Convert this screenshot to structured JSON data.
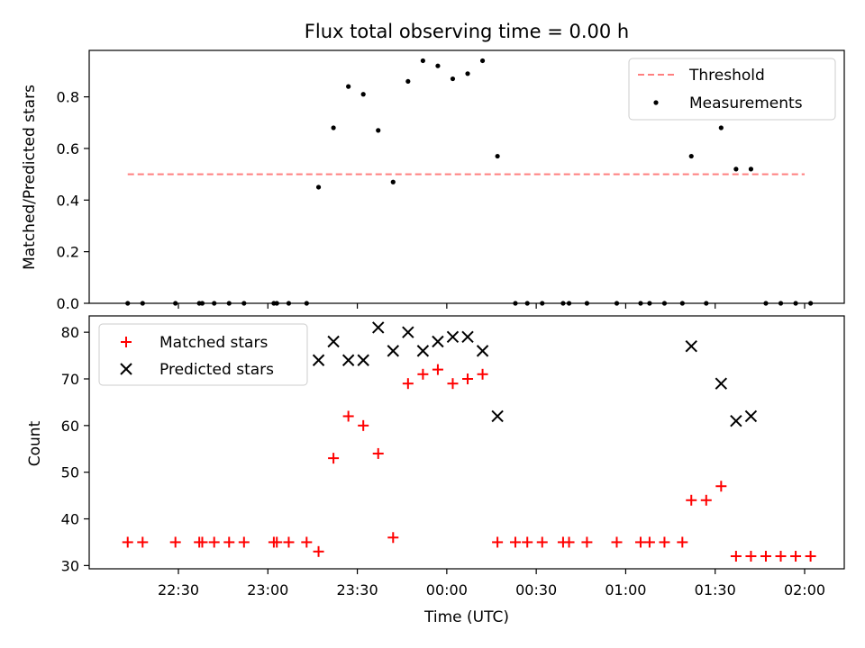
{
  "chart_data": [
    {
      "type": "scatter",
      "title": "Flux total observing time = 0.00 h",
      "xlabel": "",
      "ylabel": "Matched/Predicted stars",
      "ylim": [
        0.0,
        0.98
      ],
      "yticks": [
        "0.0",
        "0.2",
        "0.4",
        "0.6",
        "0.8"
      ],
      "legend": {
        "position": "upper right",
        "entries": [
          "Threshold",
          "Measurements"
        ]
      },
      "threshold": {
        "name": "Threshold",
        "value": 0.5,
        "x_start": "22:13",
        "x_end": "02:00",
        "color": "#ff7f7f"
      },
      "series": [
        {
          "name": "Measurements",
          "color": "#000000",
          "x": [
            "22:13",
            "22:18",
            "22:29",
            "22:37",
            "22:38",
            "22:42",
            "22:47",
            "22:52",
            "23:02",
            "23:03",
            "23:07",
            "23:13",
            "23:17",
            "23:22",
            "23:27",
            "23:32",
            "23:37",
            "23:42",
            "23:47",
            "23:52",
            "23:57",
            "00:02",
            "00:07",
            "00:12",
            "00:17",
            "00:23",
            "00:27",
            "00:32",
            "00:39",
            "00:41",
            "00:47",
            "00:57",
            "01:05",
            "01:08",
            "01:13",
            "01:19",
            "01:22",
            "01:27",
            "01:32",
            "01:37",
            "01:42",
            "01:47",
            "01:52",
            "01:57",
            "02:02"
          ],
          "y": [
            0.0,
            0.0,
            0.0,
            0.0,
            0.0,
            0.0,
            0.0,
            0.0,
            0.0,
            0.0,
            0.0,
            0.0,
            0.45,
            0.68,
            0.84,
            0.81,
            0.67,
            0.47,
            0.86,
            0.94,
            0.92,
            0.87,
            0.89,
            0.94,
            0.57,
            0.0,
            0.0,
            0.0,
            0.0,
            0.0,
            0.0,
            0.0,
            0.0,
            0.0,
            0.0,
            0.0,
            0.57,
            0.0,
            0.68,
            0.52,
            0.52,
            0.0,
            0.0,
            0.0,
            0.0
          ]
        }
      ]
    },
    {
      "type": "scatter",
      "title": "",
      "xlabel": "Time (UTC)",
      "ylabel": "Count",
      "ylim": [
        29.3,
        83.5
      ],
      "yticks": [
        "30",
        "40",
        "50",
        "60",
        "70",
        "80"
      ],
      "xticks": [
        "22:30",
        "23:00",
        "23:30",
        "00:00",
        "00:30",
        "01:00",
        "01:30",
        "02:00"
      ],
      "legend": {
        "position": "upper left",
        "entries": [
          "Matched stars",
          "Predicted stars"
        ]
      },
      "series": [
        {
          "name": "Matched stars",
          "color": "#ff0000",
          "marker": "plus",
          "x": [
            "22:13",
            "22:18",
            "22:29",
            "22:37",
            "22:38",
            "22:42",
            "22:47",
            "22:52",
            "23:02",
            "23:03",
            "23:07",
            "23:13",
            "23:17",
            "23:22",
            "23:27",
            "23:32",
            "23:37",
            "23:42",
            "23:47",
            "23:52",
            "23:57",
            "00:02",
            "00:07",
            "00:12",
            "00:17",
            "00:23",
            "00:27",
            "00:32",
            "00:39",
            "00:41",
            "00:47",
            "00:57",
            "01:05",
            "01:08",
            "01:13",
            "01:19",
            "01:22",
            "01:27",
            "01:32",
            "01:37",
            "01:42",
            "01:47",
            "01:52",
            "01:57",
            "02:02"
          ],
          "y": [
            35,
            35,
            35,
            35,
            35,
            35,
            35,
            35,
            35,
            35,
            35,
            35,
            33,
            53,
            62,
            60,
            54,
            36,
            69,
            71,
            72,
            69,
            70,
            71,
            35,
            35,
            35,
            35,
            35,
            35,
            35,
            35,
            35,
            35,
            35,
            35,
            44,
            44,
            47,
            32,
            32,
            32,
            32,
            32,
            32
          ]
        },
        {
          "name": "Predicted stars",
          "color": "#000000",
          "marker": "x",
          "x": [
            "23:17",
            "23:22",
            "23:27",
            "23:32",
            "23:37",
            "23:42",
            "23:47",
            "23:52",
            "23:57",
            "00:02",
            "00:07",
            "00:12",
            "00:17",
            "01:22",
            "01:32",
            "01:37",
            "01:42"
          ],
          "y": [
            74,
            78,
            74,
            74,
            81,
            76,
            80,
            76,
            78,
            79,
            79,
            76,
            62,
            77,
            69,
            61,
            62
          ]
        }
      ]
    }
  ]
}
